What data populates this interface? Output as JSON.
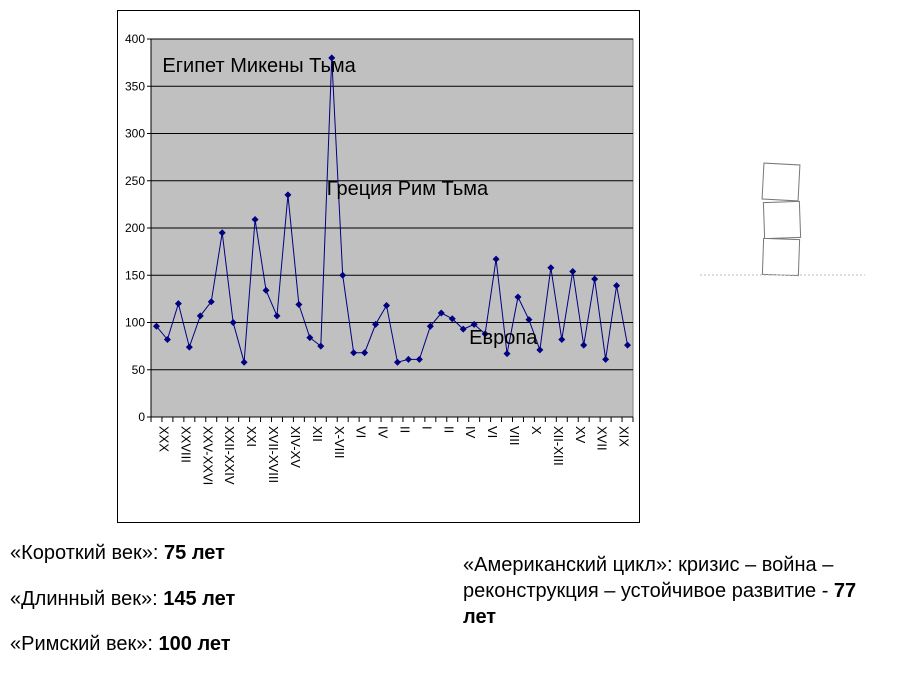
{
  "chart_data": {
    "type": "line",
    "title": "",
    "xlabel": "",
    "ylabel": "",
    "ylim": [
      0,
      400
    ],
    "yticks": [
      0,
      50,
      100,
      150,
      200,
      250,
      300,
      350,
      400
    ],
    "grid": true,
    "legend": "none",
    "colors": {
      "plot_bg": "#c0c0c0",
      "line": "#000080",
      "grid": "#000000"
    },
    "x_tick_labels": [
      "XXX",
      "XXVIII",
      "XXV-XXVI",
      "XXII-XXIV",
      "XXI",
      "XVII-XVIII",
      "XIV-XV",
      "XII",
      "X-VIII",
      "VI",
      "IV",
      "II",
      "I",
      "II",
      "IV",
      "VI",
      "VIII",
      "X",
      "XII-XIII",
      "XV",
      "XVII",
      "XIX"
    ],
    "values": [
      96,
      82,
      120,
      74,
      107,
      122,
      195,
      100,
      58,
      209,
      134,
      107,
      235,
      119,
      84,
      75,
      380,
      150,
      68,
      68,
      98,
      118,
      58,
      61,
      61,
      96,
      110,
      104,
      93,
      98,
      88,
      167,
      67,
      127,
      103,
      71,
      158,
      82,
      154,
      76,
      146,
      61,
      139,
      76
    ],
    "annotations": [
      {
        "text": "Египет Микены Тьма",
        "x": 1,
        "y": 365
      },
      {
        "text": "Греция Рим Тьма",
        "x": 16,
        "y": 235
      },
      {
        "text": "Европа",
        "x": 29,
        "y": 77
      }
    ]
  },
  "notes_left": [
    {
      "label": "«Короткий век»: ",
      "value": "75 лет"
    },
    {
      "label": "«Длинный век»: ",
      "value": "145 лет"
    },
    {
      "label": "«Римский век»: ",
      "value": "100 лет"
    }
  ],
  "note_right": {
    "text": "«Американский цикл»: кризис – война – реконструкция – устойчивое развитие - ",
    "value": "77 лет"
  }
}
